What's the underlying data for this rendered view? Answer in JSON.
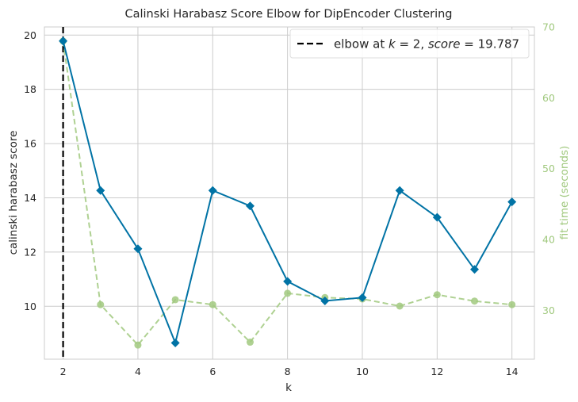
{
  "chart_data": {
    "type": "line",
    "title": "Calinski Harabasz Score Elbow for DipEncoder Clustering",
    "xlabel": "k",
    "ylabel": "calinski harabasz score",
    "y2label": "fit time (seconds)",
    "xlim": [
      1.5,
      14.6
    ],
    "ylim": [
      8.05,
      20.3
    ],
    "y2lim": [
      23.1,
      70
    ],
    "xticks": [
      2,
      4,
      6,
      8,
      10,
      12,
      14
    ],
    "yticks": [
      10,
      12,
      14,
      16,
      18,
      20
    ],
    "y2ticks": [
      30,
      40,
      50,
      60,
      70
    ],
    "grid": true,
    "legend_position": "top-right",
    "x": [
      2,
      3,
      4,
      5,
      6,
      7,
      8,
      9,
      10,
      11,
      12,
      13,
      14
    ],
    "series": [
      {
        "values": [
          19.78,
          14.27,
          12.12,
          8.65,
          14.27,
          13.7,
          10.92,
          10.2,
          10.32,
          14.27,
          13.28,
          11.36,
          13.85
        ],
        "axis": "left",
        "style": "solid",
        "marker": "diamond",
        "color": "#0173a5"
      },
      {
        "values": [
          68.0,
          30.8,
          25.1,
          31.5,
          30.8,
          25.5,
          32.4,
          31.8,
          31.6,
          30.6,
          32.2,
          31.3,
          30.8
        ],
        "axis": "right",
        "style": "dashed",
        "marker": "circle",
        "color": "#a1c97f"
      }
    ],
    "elbow": {
      "k": 2,
      "score": 19.787,
      "legend_label": "elbow at $k=2$, $score=19.787$",
      "legend_prefix": "elbow at ",
      "legend_k_var": "k",
      "legend_k_eq": " = 2, ",
      "legend_score_var": "score",
      "legend_score_eq": " = 19.787",
      "color": "#000000"
    }
  }
}
